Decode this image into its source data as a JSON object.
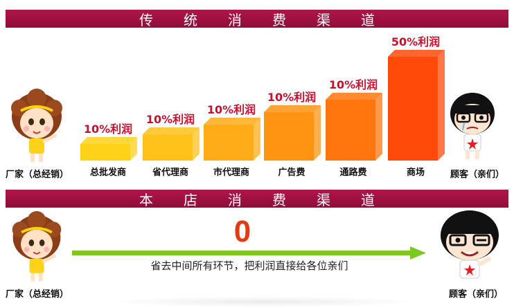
{
  "banner_top": "传统消费渠道",
  "banner_bottom": "本店消费渠道",
  "manufacturer_label": "厂家（总经销）",
  "customer_label": "顾客（亲们）",
  "chart_data": {
    "type": "bar",
    "categories": [
      "总批发商",
      "省代理商",
      "市代理商",
      "广告费",
      "通路费",
      "商场"
    ],
    "values": [
      10,
      10,
      10,
      10,
      10,
      50
    ],
    "data_labels": [
      "10%利润",
      "10%利润",
      "10%利润",
      "10%利润",
      "10%利润",
      "50%利润"
    ],
    "bar_colors": [
      "#ffd21a",
      "#ffc21a",
      "#ffac18",
      "#ff9312",
      "#ff760e",
      "#ff4a0a"
    ],
    "title": "传统消费渠道",
    "xlabel": "",
    "ylabel": ""
  },
  "bottom": {
    "value": "0",
    "arrow_text": "省去中间所有环节，把利润直接给各位亲们",
    "arrow_color": "#7dc820",
    "value_color": "#e33a12"
  },
  "colors": {
    "banner": "#9a0f3f",
    "label_red": "#c8102e"
  },
  "icons": [
    "manufacturer-cartoon-girl",
    "customer-cartoon-girl"
  ]
}
